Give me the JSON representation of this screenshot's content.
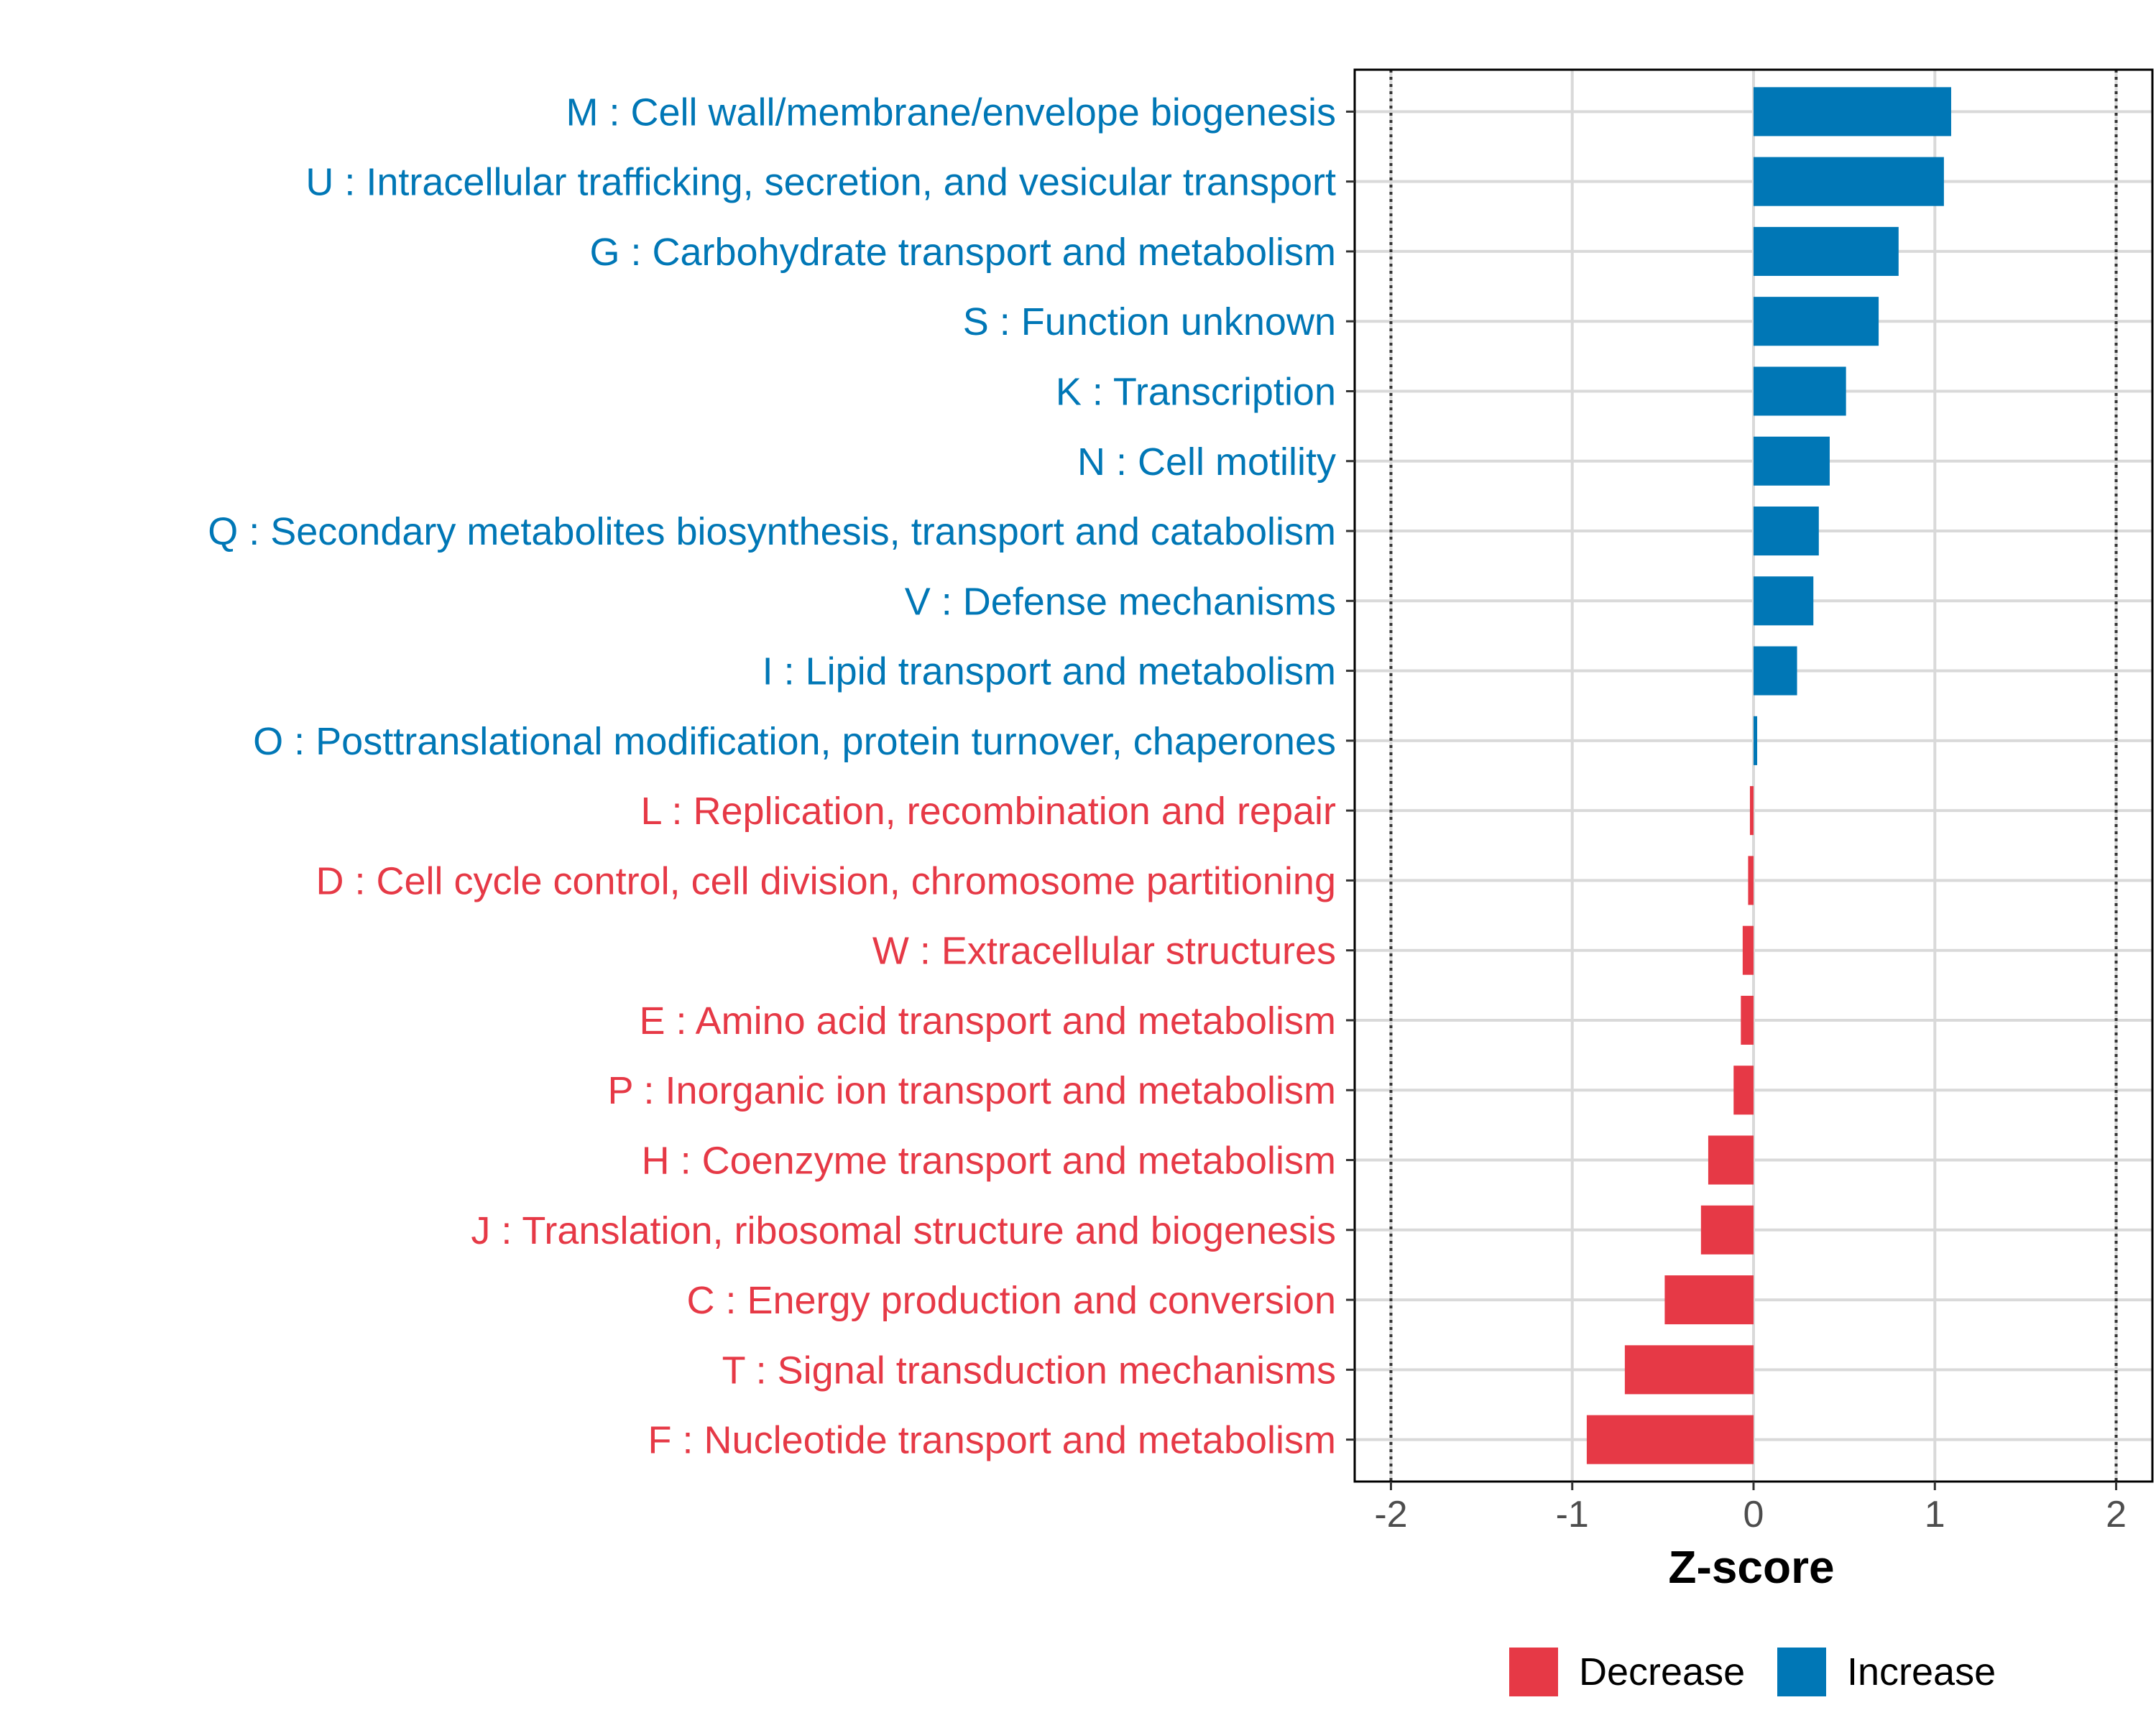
{
  "chart_data": {
    "type": "bar",
    "orientation": "horizontal",
    "xlabel": "Z-score",
    "xlim": [
      -2.2,
      2.2
    ],
    "xticks": [
      -2,
      -1,
      0,
      1,
      2
    ],
    "xtick_labels": [
      "-2",
      "-1",
      "0",
      "1",
      "2"
    ],
    "reference_lines": [
      -2,
      2
    ],
    "categories": [
      "M : Cell wall/membrane/envelope biogenesis",
      "U : Intracellular trafficking, secretion, and vesicular transport",
      "G : Carbohydrate transport and metabolism",
      "S : Function unknown",
      "K : Transcription",
      "N : Cell motility",
      "Q : Secondary metabolites biosynthesis, transport and catabolism",
      "V : Defense mechanisms",
      "I : Lipid transport and metabolism",
      "O : Posttranslational modification, protein turnover, chaperones",
      "L : Replication, recombination and repair",
      "D : Cell cycle control, cell division, chromosome partitioning",
      "W : Extracellular structures",
      "E : Amino acid transport and metabolism",
      "P : Inorganic ion transport and metabolism",
      "H : Coenzyme transport and metabolism",
      "J : Translation, ribosomal structure and biogenesis",
      "C : Energy production and conversion",
      "T : Signal transduction mechanisms",
      "F : Nucleotide transport and metabolism"
    ],
    "values": [
      1.09,
      1.05,
      0.8,
      0.69,
      0.51,
      0.42,
      0.36,
      0.33,
      0.24,
      0.02,
      -0.02,
      -0.03,
      -0.06,
      -0.07,
      -0.11,
      -0.25,
      -0.29,
      -0.49,
      -0.71,
      -0.92
    ],
    "groups": [
      "Increase",
      "Increase",
      "Increase",
      "Increase",
      "Increase",
      "Increase",
      "Increase",
      "Increase",
      "Increase",
      "Increase",
      "Decrease",
      "Decrease",
      "Decrease",
      "Decrease",
      "Decrease",
      "Decrease",
      "Decrease",
      "Decrease",
      "Decrease",
      "Decrease"
    ],
    "legend": [
      {
        "name": "Decrease",
        "color": "#E63946"
      },
      {
        "name": "Increase",
        "color": "#0077B6"
      }
    ],
    "legend_position": "bottom"
  }
}
